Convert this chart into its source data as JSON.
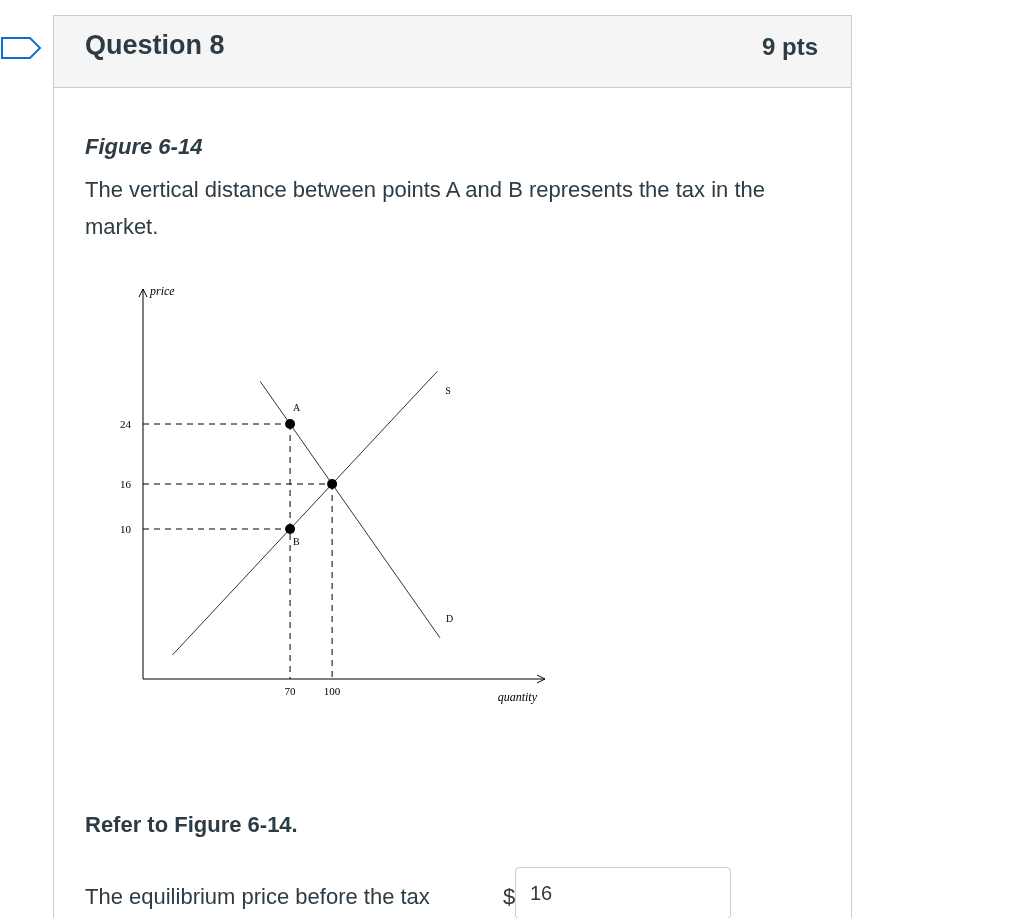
{
  "chart_data": {
    "type": "line",
    "title": "Figure 6-14",
    "subtitle": "The vertical distance between points A and B represents the tax in the market.",
    "xlabel": "quantity",
    "ylabel": "price",
    "xlim": [
      -35,
      252
    ],
    "ylim": [
      -10,
      42
    ],
    "xticks": [
      70,
      100
    ],
    "yticks": [
      10,
      16,
      24
    ],
    "grid": false,
    "series": [
      {
        "color": "#333333",
        "line_style": "solid",
        "x": [
          -14,
          70,
          100,
          175
        ],
        "values": [
          -6.8,
          10,
          16,
          31
        ]
      },
      {
        "color": "#333333",
        "line_style": "solid",
        "x": [
          48.6,
          70,
          100,
          177
        ],
        "values": [
          29.7,
          24,
          16,
          -4.5
        ]
      },
      {
        "type": "line",
        "color": "#000000",
        "line_style": "dashed",
        "x": [
          -35,
          70
        ],
        "values": [
          24,
          24
        ]
      },
      {
        "type": "line",
        "color": "#000000",
        "line_style": "dashed",
        "x": [
          -35,
          100
        ],
        "values": [
          16,
          16
        ]
      },
      {
        "type": "line",
        "color": "#000000",
        "line_style": "dashed",
        "x": [
          -35,
          70
        ],
        "values": [
          10,
          10
        ]
      },
      {
        "type": "line",
        "color": "#000000",
        "line_style": "dashed",
        "x": [
          70,
          70
        ],
        "values": [
          24,
          -10
        ]
      },
      {
        "type": "line",
        "color": "#000000",
        "line_style": "dashed",
        "x": [
          100,
          100
        ],
        "values": [
          16,
          -10
        ]
      },
      {
        "type": "scatter",
        "color": "#000000",
        "marker": "circle",
        "x": [
          70,
          100,
          70
        ],
        "values": [
          24,
          16,
          10
        ]
      }
    ],
    "annotations": [
      {
        "text": "A",
        "x": 70,
        "y": 24
      },
      {
        "text": "B",
        "x": 70,
        "y": 10
      },
      {
        "text": "S",
        "x": 175,
        "y": 31
      },
      {
        "text": "D",
        "x": 177,
        "y": -4.5
      },
      "Question 8",
      "9 pts",
      "Refer to Figure 6-14.",
      "The equilibrium price before the tax",
      "$",
      "16"
    ]
  }
}
